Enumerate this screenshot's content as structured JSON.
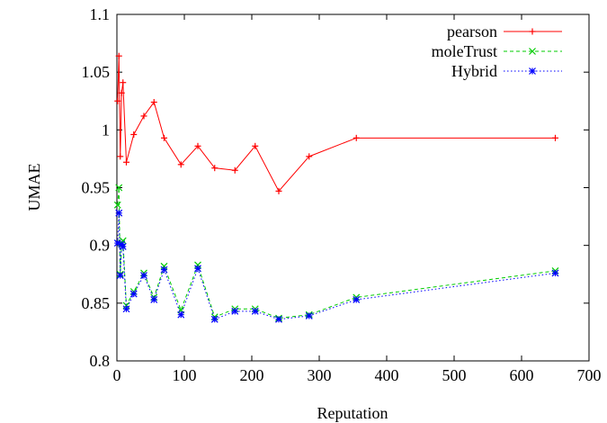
{
  "chart_data": {
    "type": "line",
    "title": "",
    "xlabel": "Reputation",
    "ylabel": "UMAE",
    "xlim": [
      0,
      700
    ],
    "ylim": [
      0.8,
      1.1
    ],
    "xticks": [
      0,
      100,
      200,
      300,
      400,
      500,
      600,
      700
    ],
    "xtick_labels": [
      "0",
      "100",
      "200",
      "300",
      "400",
      "500",
      "600",
      "700"
    ],
    "yticks": [
      0.8,
      0.85,
      0.9,
      0.95,
      1.0,
      1.05,
      1.1
    ],
    "ytick_labels": [
      "0.8",
      "0.85",
      "0.9",
      "0.95",
      "1",
      "1.05",
      "1.1"
    ],
    "grid": false,
    "legend_position": "top-right",
    "series": [
      {
        "name": "pearson",
        "color": "#ff0000",
        "line": "solid",
        "marker": "plus",
        "x": [
          1,
          3,
          5,
          7,
          9,
          14,
          25,
          40,
          55,
          70,
          95,
          120,
          145,
          175,
          205,
          240,
          285,
          355,
          650
        ],
        "y": [
          1.025,
          1.064,
          0.977,
          1.032,
          1.041,
          0.972,
          0.996,
          1.012,
          1.024,
          0.993,
          0.97,
          0.986,
          0.967,
          0.965,
          0.986,
          0.947,
          0.977,
          0.993,
          0.993
        ]
      },
      {
        "name": "moleTrust",
        "color": "#00cc00",
        "line": "dashed",
        "marker": "cross",
        "x": [
          1,
          3,
          5,
          7,
          9,
          14,
          25,
          40,
          55,
          70,
          95,
          120,
          145,
          175,
          205,
          240,
          285,
          355,
          650
        ],
        "y": [
          0.935,
          0.95,
          0.875,
          0.902,
          0.904,
          0.848,
          0.86,
          0.876,
          0.855,
          0.882,
          0.844,
          0.883,
          0.838,
          0.845,
          0.845,
          0.837,
          0.84,
          0.855,
          0.878
        ]
      },
      {
        "name": "Hybrid",
        "color": "#0000ff",
        "line": "dotted",
        "marker": "star",
        "x": [
          1,
          3,
          5,
          7,
          9,
          14,
          25,
          40,
          55,
          70,
          95,
          120,
          145,
          175,
          205,
          240,
          285,
          355,
          650
        ],
        "y": [
          0.902,
          0.928,
          0.874,
          0.901,
          0.899,
          0.845,
          0.858,
          0.874,
          0.853,
          0.879,
          0.84,
          0.88,
          0.836,
          0.843,
          0.843,
          0.836,
          0.839,
          0.853,
          0.876
        ]
      }
    ]
  }
}
